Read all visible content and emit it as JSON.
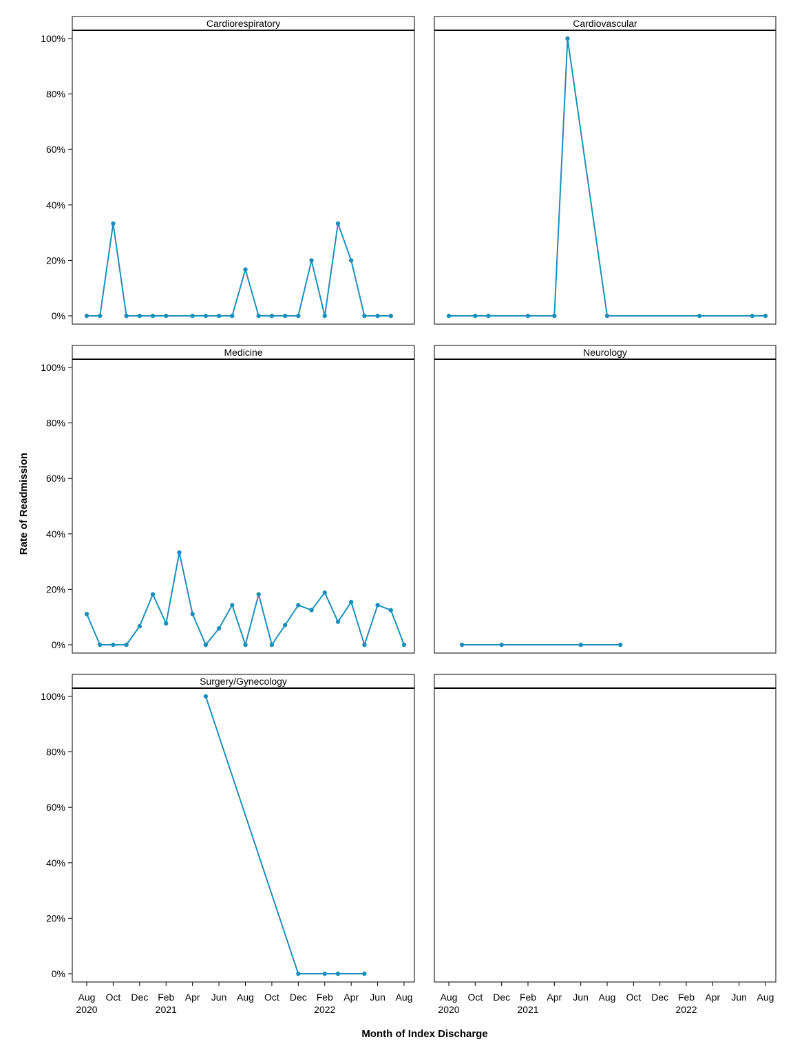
{
  "chart_data": {
    "type": "line",
    "ylabel": "Rate of Readmission",
    "xlabel": "Month of Index Discharge",
    "ylim": [
      0,
      100
    ],
    "yticks": [
      "0%",
      "20%",
      "40%",
      "60%",
      "80%",
      "100%"
    ],
    "xlim": [
      "2020-08",
      "2022-08"
    ],
    "xticks": [
      {
        "month": "Aug",
        "year": "2020"
      },
      {
        "month": "Oct",
        "year": ""
      },
      {
        "month": "Dec",
        "year": ""
      },
      {
        "month": "Feb",
        "year": "2021"
      },
      {
        "month": "Apr",
        "year": ""
      },
      {
        "month": "Jun",
        "year": ""
      },
      {
        "month": "Aug",
        "year": ""
      },
      {
        "month": "Oct",
        "year": ""
      },
      {
        "month": "Dec",
        "year": ""
      },
      {
        "month": "Feb",
        "year": "2022"
      },
      {
        "month": "Apr",
        "year": ""
      },
      {
        "month": "Jun",
        "year": ""
      },
      {
        "month": "Aug",
        "year": ""
      }
    ],
    "line_color": "#1a8fba",
    "panels": [
      {
        "title": "Cardiorespiratory",
        "x": [
          "2020-08",
          "2020-09",
          "2020-10",
          "2020-11",
          "2020-12",
          "2021-01",
          "2021-02",
          "2021-04",
          "2021-05",
          "2021-06",
          "2021-07",
          "2021-08",
          "2021-09",
          "2021-10",
          "2021-11",
          "2021-12",
          "2022-01",
          "2022-02",
          "2022-03",
          "2022-04",
          "2022-05",
          "2022-06",
          "2022-07"
        ],
        "y": [
          0,
          0,
          33.3,
          0,
          0,
          0,
          0,
          0,
          0,
          0,
          0,
          16.7,
          0,
          0,
          0,
          0,
          20,
          0,
          33.3,
          20,
          0,
          0,
          0
        ]
      },
      {
        "title": "Cardiovascular",
        "x": [
          "2020-08",
          "2020-10",
          "2020-11",
          "2021-02",
          "2021-04",
          "2021-05",
          "2021-08",
          "2022-03",
          "2022-07",
          "2022-08"
        ],
        "y": [
          0,
          0,
          0,
          0,
          0,
          100,
          0,
          0,
          0,
          0
        ]
      },
      {
        "title": "Medicine",
        "x": [
          "2020-08",
          "2020-09",
          "2020-10",
          "2020-11",
          "2020-12",
          "2021-01",
          "2021-02",
          "2021-03",
          "2021-04",
          "2021-05",
          "2021-06",
          "2021-07",
          "2021-08",
          "2021-09",
          "2021-10",
          "2021-11",
          "2021-12",
          "2022-01",
          "2022-02",
          "2022-03",
          "2022-04",
          "2022-05",
          "2022-06",
          "2022-07",
          "2022-08"
        ],
        "y": [
          11.1,
          0,
          0,
          0,
          6.7,
          18.2,
          7.7,
          33.3,
          11.1,
          0,
          5.9,
          14.3,
          0,
          18.2,
          0,
          7.1,
          14.3,
          12.5,
          18.8,
          8.3,
          15.4,
          0,
          14.3,
          12.5,
          0
        ]
      },
      {
        "title": "Neurology",
        "x": [
          "2020-09",
          "2020-12",
          "2021-06",
          "2021-09"
        ],
        "y": [
          0,
          0,
          0,
          0
        ]
      },
      {
        "title": "Surgery/Gynecology",
        "x": [
          "2021-05",
          "2021-12",
          "2022-02",
          "2022-03",
          "2022-05"
        ],
        "y": [
          100,
          0,
          0,
          0,
          0
        ]
      },
      {
        "title": "",
        "x": [],
        "y": []
      }
    ]
  }
}
